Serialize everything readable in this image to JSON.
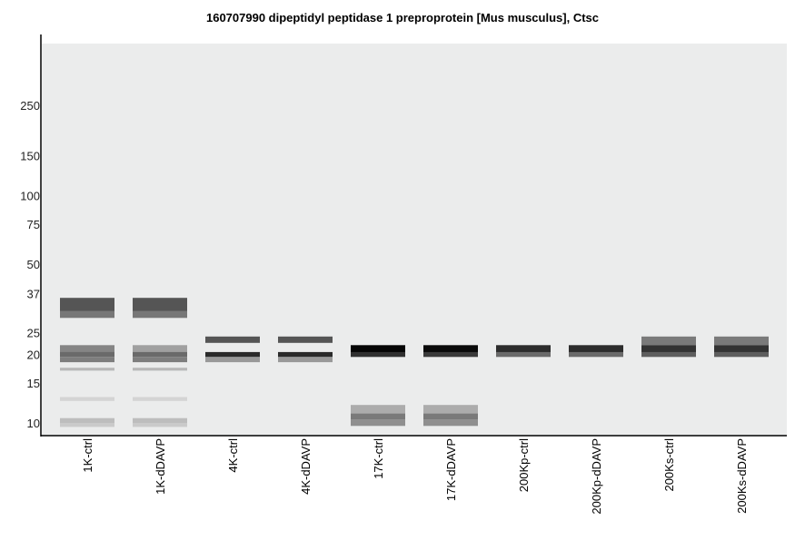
{
  "chart_data": {
    "type": "gel-blot",
    "title": "160707990 dipeptidyl peptidase 1 preproprotein [Mus musculus], Ctsc",
    "y_scale": "log",
    "y_ticks": [
      250,
      150,
      100,
      75,
      50,
      37,
      25,
      20,
      15,
      10
    ],
    "lanes": [
      "1K-ctrl",
      "1K-dDAVP",
      "4K-ctrl",
      "4K-dDAVP",
      "17K-ctrl",
      "17K-dDAVP",
      "200Kp-ctrl",
      "200Kp-dDAVP",
      "200Ks-ctrl",
      "200Ks-dDAVP"
    ],
    "bands": [
      [
        {
          "kda_top": 35.5,
          "kda_bottom": 31.0,
          "color": "#555555"
        },
        {
          "kda_top": 31.0,
          "kda_bottom": 29.0,
          "color": "#777777"
        },
        {
          "kda_top": 22.0,
          "kda_bottom": 20.5,
          "color": "#858585"
        },
        {
          "kda_top": 20.5,
          "kda_bottom": 19.5,
          "color": "#6a6a6a"
        },
        {
          "kda_top": 19.5,
          "kda_bottom": 18.5,
          "color": "#7e7e7e"
        },
        {
          "kda_top": 17.5,
          "kda_bottom": 17.0,
          "color": "#b8b8b8"
        },
        {
          "kda_top": 13.0,
          "kda_bottom": 12.5,
          "color": "#d4d4d4"
        },
        {
          "kda_top": 10.5,
          "kda_bottom": 10.0,
          "color": "#bdbdbd"
        },
        {
          "kda_top": 10.0,
          "kda_bottom": 9.6,
          "color": "#cacaca"
        }
      ],
      [
        {
          "kda_top": 35.5,
          "kda_bottom": 31.0,
          "color": "#555555"
        },
        {
          "kda_top": 31.0,
          "kda_bottom": 29.0,
          "color": "#777777"
        },
        {
          "kda_top": 22.0,
          "kda_bottom": 20.5,
          "color": "#a0a0a0"
        },
        {
          "kda_top": 20.5,
          "kda_bottom": 19.5,
          "color": "#6a6a6a"
        },
        {
          "kda_top": 19.5,
          "kda_bottom": 18.5,
          "color": "#7e7e7e"
        },
        {
          "kda_top": 17.5,
          "kda_bottom": 17.0,
          "color": "#b8b8b8"
        },
        {
          "kda_top": 13.0,
          "kda_bottom": 12.5,
          "color": "#d4d4d4"
        },
        {
          "kda_top": 10.5,
          "kda_bottom": 10.0,
          "color": "#bdbdbd"
        },
        {
          "kda_top": 10.0,
          "kda_bottom": 9.6,
          "color": "#cacaca"
        }
      ],
      [
        {
          "kda_top": 24.0,
          "kda_bottom": 22.5,
          "color": "#555555"
        },
        {
          "kda_top": 20.5,
          "kda_bottom": 19.5,
          "color": "#2a2a2a"
        },
        {
          "kda_top": 19.5,
          "kda_bottom": 18.5,
          "color": "#999999"
        }
      ],
      [
        {
          "kda_top": 24.0,
          "kda_bottom": 22.5,
          "color": "#555555"
        },
        {
          "kda_top": 20.5,
          "kda_bottom": 19.5,
          "color": "#2a2a2a"
        },
        {
          "kda_top": 19.5,
          "kda_bottom": 18.5,
          "color": "#999999"
        }
      ],
      [
        {
          "kda_top": 22.0,
          "kda_bottom": 20.5,
          "color": "#050505"
        },
        {
          "kda_top": 20.5,
          "kda_bottom": 19.5,
          "color": "#303030"
        },
        {
          "kda_top": 12.0,
          "kda_bottom": 11.0,
          "color": "#acacac"
        },
        {
          "kda_top": 11.0,
          "kda_bottom": 10.3,
          "color": "#7a7a7a"
        },
        {
          "kda_top": 10.3,
          "kda_bottom": 9.7,
          "color": "#8f8f8f"
        }
      ],
      [
        {
          "kda_top": 22.0,
          "kda_bottom": 20.5,
          "color": "#0a0a0a"
        },
        {
          "kda_top": 20.5,
          "kda_bottom": 19.5,
          "color": "#3a3a3a"
        },
        {
          "kda_top": 12.0,
          "kda_bottom": 11.0,
          "color": "#acacac"
        },
        {
          "kda_top": 11.0,
          "kda_bottom": 10.3,
          "color": "#7a7a7a"
        },
        {
          "kda_top": 10.3,
          "kda_bottom": 9.7,
          "color": "#8f8f8f"
        }
      ],
      [
        {
          "kda_top": 22.0,
          "kda_bottom": 20.5,
          "color": "#2c2c2c"
        },
        {
          "kda_top": 20.5,
          "kda_bottom": 19.5,
          "color": "#6a6a6a"
        }
      ],
      [
        {
          "kda_top": 22.0,
          "kda_bottom": 20.5,
          "color": "#2c2c2c"
        },
        {
          "kda_top": 20.5,
          "kda_bottom": 19.5,
          "color": "#6a6a6a"
        }
      ],
      [
        {
          "kda_top": 24.0,
          "kda_bottom": 22.0,
          "color": "#7a7a7a"
        },
        {
          "kda_top": 22.0,
          "kda_bottom": 20.5,
          "color": "#333333"
        },
        {
          "kda_top": 20.5,
          "kda_bottom": 19.5,
          "color": "#5e5e5e"
        }
      ],
      [
        {
          "kda_top": 24.0,
          "kda_bottom": 22.0,
          "color": "#7a7a7a"
        },
        {
          "kda_top": 22.0,
          "kda_bottom": 20.5,
          "color": "#333333"
        },
        {
          "kda_top": 20.5,
          "kda_bottom": 19.5,
          "color": "#5e5e5e"
        }
      ]
    ],
    "grid": false,
    "background_color": "#ebecec",
    "axis_color": "#000000"
  }
}
